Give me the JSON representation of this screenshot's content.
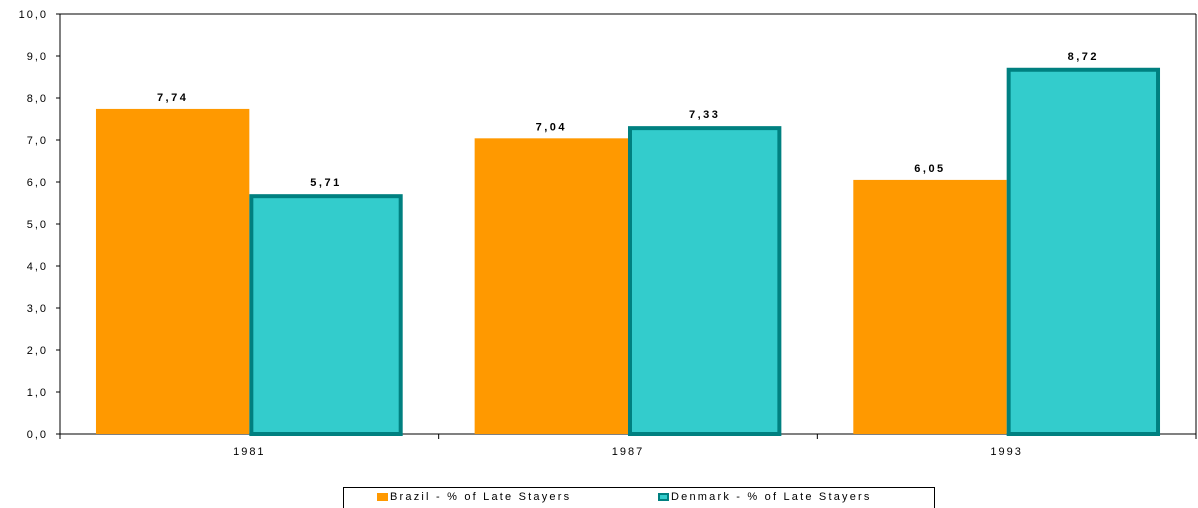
{
  "chart_data": {
    "type": "bar",
    "categories": [
      "1981",
      "1987",
      "1993"
    ],
    "series": [
      {
        "name": "Brazil - % of Late Stayers",
        "values": [
          7.74,
          7.04,
          6.05
        ],
        "labels": [
          "7,74",
          "7,04",
          "6,05"
        ],
        "color": "#FF9900",
        "border": "#FF9900"
      },
      {
        "name": "Denmark - % of Late Stayers",
        "values": [
          5.71,
          7.33,
          8.72
        ],
        "labels": [
          "5,71",
          "7,33",
          "8,72"
        ],
        "color": "#33CCCC",
        "border": "#008080"
      }
    ],
    "ylim": [
      0,
      10
    ],
    "yticks": [
      "0,0",
      "1,0",
      "2,0",
      "3,0",
      "4,0",
      "5,0",
      "6,0",
      "7,0",
      "8,0",
      "9,0",
      "10,0"
    ],
    "grid": false,
    "legend_position": "bottom"
  }
}
